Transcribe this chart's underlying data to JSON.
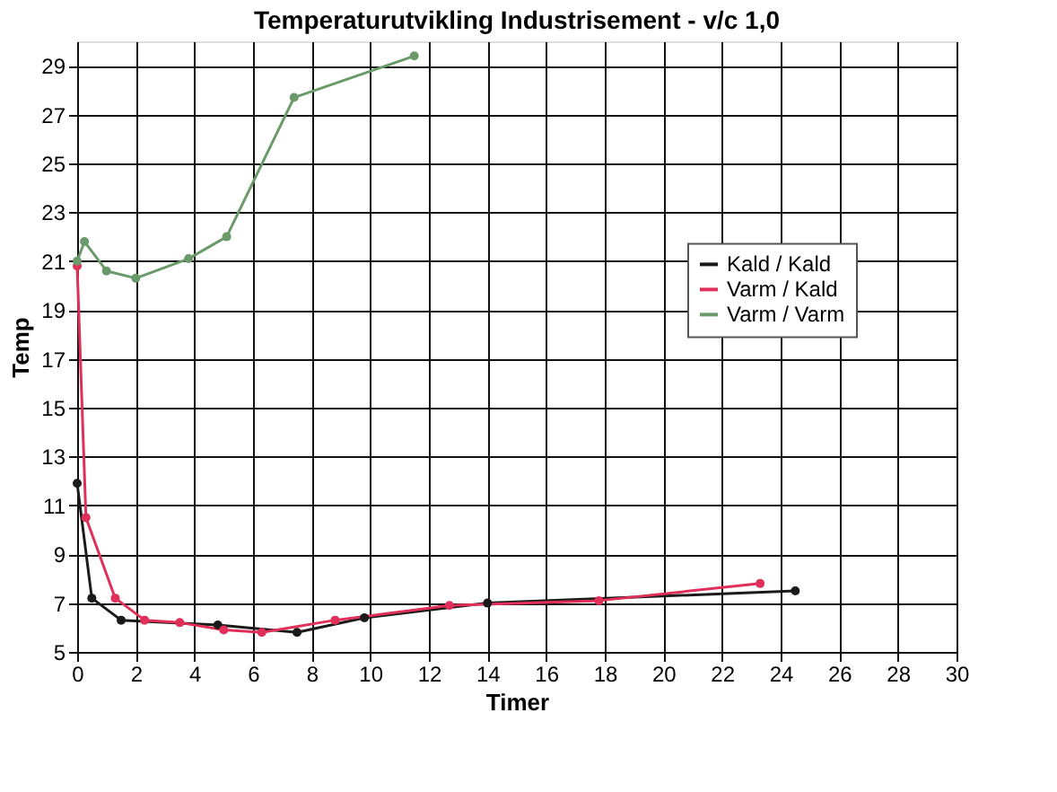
{
  "chart_data": {
    "type": "line",
    "title": "Temperaturutvikling  Industrisement - v/c 1,0",
    "xlabel": "Timer",
    "ylabel": "Temp",
    "series": [
      {
        "name": "Kald / Kald",
        "color": "#1a1a1a",
        "x": [
          0,
          0.5,
          1.5,
          4.8,
          7.5,
          9.8,
          14,
          24.5
        ],
        "values": [
          11.9,
          7.2,
          6.3,
          6.1,
          5.8,
          6.4,
          7.0,
          7.5
        ]
      },
      {
        "name": "Varm / Kald",
        "color": "#e0305a",
        "x": [
          0,
          0.3,
          1.3,
          2.3,
          3.5,
          5,
          6.3,
          8.8,
          12.7,
          17.8,
          23.3
        ],
        "values": [
          20.8,
          10.5,
          7.2,
          6.3,
          6.2,
          5.9,
          5.8,
          6.3,
          6.9,
          7.1,
          7.8
        ]
      },
      {
        "name": "Varm / Varm",
        "color": "#6a9a6a",
        "x": [
          0,
          0.25,
          1,
          2,
          3.8,
          5.1,
          7.4,
          11.5
        ],
        "values": [
          21.0,
          21.8,
          20.6,
          20.3,
          21.1,
          22.0,
          27.7,
          29.4
        ]
      }
    ],
    "xlim": [
      0,
      30
    ],
    "xticks": [
      0,
      2,
      4,
      6,
      8,
      10,
      12,
      14,
      16,
      18,
      20,
      22,
      24,
      26,
      28,
      30
    ],
    "ylim": [
      5,
      30
    ],
    "yticks": [
      5,
      7,
      9,
      11,
      13,
      15,
      17,
      19,
      21,
      23,
      25,
      27,
      29
    ],
    "grid": true,
    "legend": "right",
    "marker": "circle",
    "line_style": "solid"
  }
}
